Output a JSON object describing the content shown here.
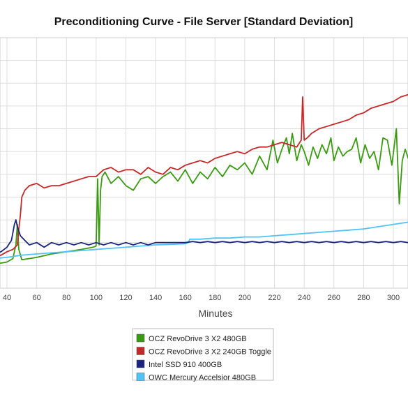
{
  "chart_data": {
    "type": "line",
    "title": "Preconditioning Curve - File Server [Standard Deviation]",
    "xlabel": "Minutes",
    "ylabel": "",
    "xlim": [
      31,
      312
    ],
    "ylim": [
      0,
      11
    ],
    "x_ticks": [
      40,
      60,
      80,
      100,
      120,
      140,
      160,
      180,
      200,
      220,
      240,
      260,
      280,
      300
    ],
    "grid": true,
    "legend_position": "bottom-center",
    "series": [
      {
        "name": "OCZ RevoDrive 3 X2 480GB",
        "color": "#3a9a12",
        "points": [
          [
            31,
            1.1
          ],
          [
            36,
            1.1
          ],
          [
            40,
            1.15
          ],
          [
            44,
            1.3
          ],
          [
            46,
            1.9
          ],
          [
            47,
            2.8
          ],
          [
            48,
            1.7
          ],
          [
            50,
            1.25
          ],
          [
            55,
            1.3
          ],
          [
            60,
            1.35
          ],
          [
            70,
            1.5
          ],
          [
            80,
            1.6
          ],
          [
            90,
            1.7
          ],
          [
            98,
            1.8
          ],
          [
            100,
            1.85
          ],
          [
            101,
            4.8
          ],
          [
            102,
            1.9
          ],
          [
            103,
            4.3
          ],
          [
            104,
            4.9
          ],
          [
            106,
            5.1
          ],
          [
            110,
            4.6
          ],
          [
            115,
            4.9
          ],
          [
            120,
            4.5
          ],
          [
            125,
            4.3
          ],
          [
            130,
            4.8
          ],
          [
            135,
            4.9
          ],
          [
            140,
            4.6
          ],
          [
            145,
            4.9
          ],
          [
            150,
            5.1
          ],
          [
            155,
            4.7
          ],
          [
            160,
            5.2
          ],
          [
            165,
            4.6
          ],
          [
            170,
            5.1
          ],
          [
            175,
            4.8
          ],
          [
            180,
            5.3
          ],
          [
            185,
            4.9
          ],
          [
            190,
            5.4
          ],
          [
            195,
            5.2
          ],
          [
            200,
            5.5
          ],
          [
            205,
            5.0
          ],
          [
            210,
            5.8
          ],
          [
            215,
            5.2
          ],
          [
            219,
            6.5
          ],
          [
            222,
            5.5
          ],
          [
            225,
            6.1
          ],
          [
            228,
            6.6
          ],
          [
            230,
            5.9
          ],
          [
            232,
            6.8
          ],
          [
            235,
            5.6
          ],
          [
            238,
            6.3
          ],
          [
            240,
            6.0
          ],
          [
            243,
            5.4
          ],
          [
            246,
            6.2
          ],
          [
            249,
            5.7
          ],
          [
            252,
            6.3
          ],
          [
            255,
            5.9
          ],
          [
            258,
            6.6
          ],
          [
            260,
            5.6
          ],
          [
            263,
            6.2
          ],
          [
            266,
            5.8
          ],
          [
            269,
            6.0
          ],
          [
            272,
            6.1
          ],
          [
            275,
            6.6
          ],
          [
            278,
            5.5
          ],
          [
            281,
            6.3
          ],
          [
            284,
            5.7
          ],
          [
            287,
            6.0
          ],
          [
            290,
            5.2
          ],
          [
            293,
            6.6
          ],
          [
            296,
            6.5
          ],
          [
            299,
            5.4
          ],
          [
            302,
            7.0
          ],
          [
            304,
            3.7
          ],
          [
            306,
            5.6
          ],
          [
            308,
            6.1
          ],
          [
            310,
            5.7
          ],
          [
            312,
            5.9
          ]
        ]
      },
      {
        "name": "OCZ RevoDrive 3 X2 240GB Toggle",
        "color": "#c62828",
        "points": [
          [
            31,
            1.4
          ],
          [
            36,
            1.45
          ],
          [
            40,
            1.6
          ],
          [
            44,
            1.7
          ],
          [
            47,
            1.9
          ],
          [
            48,
            2.6
          ],
          [
            49,
            3.2
          ],
          [
            50,
            4.0
          ],
          [
            52,
            4.3
          ],
          [
            55,
            4.5
          ],
          [
            60,
            4.6
          ],
          [
            65,
            4.4
          ],
          [
            70,
            4.5
          ],
          [
            75,
            4.5
          ],
          [
            80,
            4.6
          ],
          [
            85,
            4.7
          ],
          [
            90,
            4.8
          ],
          [
            95,
            4.9
          ],
          [
            100,
            4.9
          ],
          [
            105,
            5.2
          ],
          [
            110,
            5.3
          ],
          [
            115,
            5.1
          ],
          [
            120,
            5.2
          ],
          [
            125,
            5.2
          ],
          [
            130,
            5.0
          ],
          [
            135,
            5.3
          ],
          [
            140,
            5.1
          ],
          [
            145,
            5.0
          ],
          [
            150,
            5.3
          ],
          [
            155,
            5.2
          ],
          [
            160,
            5.4
          ],
          [
            165,
            5.5
          ],
          [
            170,
            5.6
          ],
          [
            175,
            5.5
          ],
          [
            180,
            5.7
          ],
          [
            185,
            5.8
          ],
          [
            190,
            5.9
          ],
          [
            195,
            6.0
          ],
          [
            200,
            5.9
          ],
          [
            205,
            6.1
          ],
          [
            210,
            6.2
          ],
          [
            215,
            6.2
          ],
          [
            220,
            6.3
          ],
          [
            225,
            6.4
          ],
          [
            230,
            6.3
          ],
          [
            235,
            6.2
          ],
          [
            238,
            6.5
          ],
          [
            239,
            8.4
          ],
          [
            240,
            6.5
          ],
          [
            242,
            6.6
          ],
          [
            245,
            6.8
          ],
          [
            250,
            7.0
          ],
          [
            255,
            7.1
          ],
          [
            260,
            7.2
          ],
          [
            265,
            7.3
          ],
          [
            270,
            7.4
          ],
          [
            275,
            7.6
          ],
          [
            280,
            7.7
          ],
          [
            285,
            7.9
          ],
          [
            290,
            8.0
          ],
          [
            295,
            8.1
          ],
          [
            300,
            8.2
          ],
          [
            305,
            8.4
          ],
          [
            310,
            8.5
          ],
          [
            312,
            8.3
          ]
        ]
      },
      {
        "name": "Intel SSD 910 400GB",
        "color": "#1a237e",
        "points": [
          [
            31,
            1.5
          ],
          [
            36,
            1.6
          ],
          [
            40,
            1.8
          ],
          [
            43,
            2.1
          ],
          [
            45,
            2.8
          ],
          [
            46,
            3.0
          ],
          [
            47,
            2.7
          ],
          [
            49,
            2.3
          ],
          [
            52,
            2.1
          ],
          [
            55,
            1.9
          ],
          [
            60,
            2.0
          ],
          [
            65,
            1.8
          ],
          [
            70,
            2.0
          ],
          [
            75,
            1.9
          ],
          [
            80,
            2.0
          ],
          [
            85,
            1.9
          ],
          [
            90,
            2.0
          ],
          [
            95,
            1.9
          ],
          [
            100,
            2.0
          ],
          [
            105,
            1.9
          ],
          [
            110,
            2.0
          ],
          [
            115,
            1.9
          ],
          [
            120,
            2.0
          ],
          [
            125,
            1.9
          ],
          [
            130,
            2.0
          ],
          [
            135,
            1.9
          ],
          [
            140,
            2.0
          ],
          [
            145,
            2.0
          ],
          [
            150,
            2.0
          ],
          [
            155,
            2.0
          ],
          [
            160,
            2.0
          ],
          [
            165,
            2.05
          ],
          [
            170,
            2.0
          ],
          [
            175,
            2.05
          ],
          [
            180,
            2.0
          ],
          [
            185,
            2.05
          ],
          [
            190,
            2.0
          ],
          [
            195,
            2.05
          ],
          [
            200,
            2.0
          ],
          [
            205,
            2.05
          ],
          [
            210,
            2.0
          ],
          [
            215,
            2.05
          ],
          [
            220,
            2.0
          ],
          [
            225,
            2.05
          ],
          [
            230,
            2.0
          ],
          [
            235,
            2.05
          ],
          [
            240,
            2.0
          ],
          [
            245,
            2.05
          ],
          [
            250,
            2.0
          ],
          [
            255,
            2.05
          ],
          [
            260,
            2.0
          ],
          [
            265,
            2.05
          ],
          [
            270,
            2.0
          ],
          [
            275,
            2.05
          ],
          [
            280,
            2.0
          ],
          [
            285,
            2.05
          ],
          [
            290,
            2.0
          ],
          [
            295,
            2.05
          ],
          [
            300,
            2.0
          ],
          [
            305,
            2.05
          ],
          [
            310,
            2.0
          ],
          [
            312,
            2.0
          ]
        ]
      },
      {
        "name": "OWC Mercury Accelsior 480GB",
        "color": "#4fc3f7",
        "points": [
          [
            31,
            1.3
          ],
          [
            40,
            1.35
          ],
          [
            50,
            1.45
          ],
          [
            60,
            1.5
          ],
          [
            70,
            1.55
          ],
          [
            80,
            1.6
          ],
          [
            90,
            1.65
          ],
          [
            100,
            1.7
          ],
          [
            110,
            1.75
          ],
          [
            120,
            1.8
          ],
          [
            130,
            1.85
          ],
          [
            140,
            1.9
          ],
          [
            150,
            1.92
          ],
          [
            160,
            1.95
          ],
          [
            162,
            2.0
          ],
          [
            163,
            2.15
          ],
          [
            170,
            2.15
          ],
          [
            180,
            2.2
          ],
          [
            190,
            2.2
          ],
          [
            200,
            2.25
          ],
          [
            210,
            2.25
          ],
          [
            220,
            2.3
          ],
          [
            230,
            2.35
          ],
          [
            240,
            2.4
          ],
          [
            250,
            2.45
          ],
          [
            260,
            2.5
          ],
          [
            270,
            2.55
          ],
          [
            280,
            2.6
          ],
          [
            290,
            2.7
          ],
          [
            300,
            2.8
          ],
          [
            305,
            2.85
          ],
          [
            310,
            2.9
          ],
          [
            312,
            2.9
          ]
        ]
      }
    ]
  }
}
